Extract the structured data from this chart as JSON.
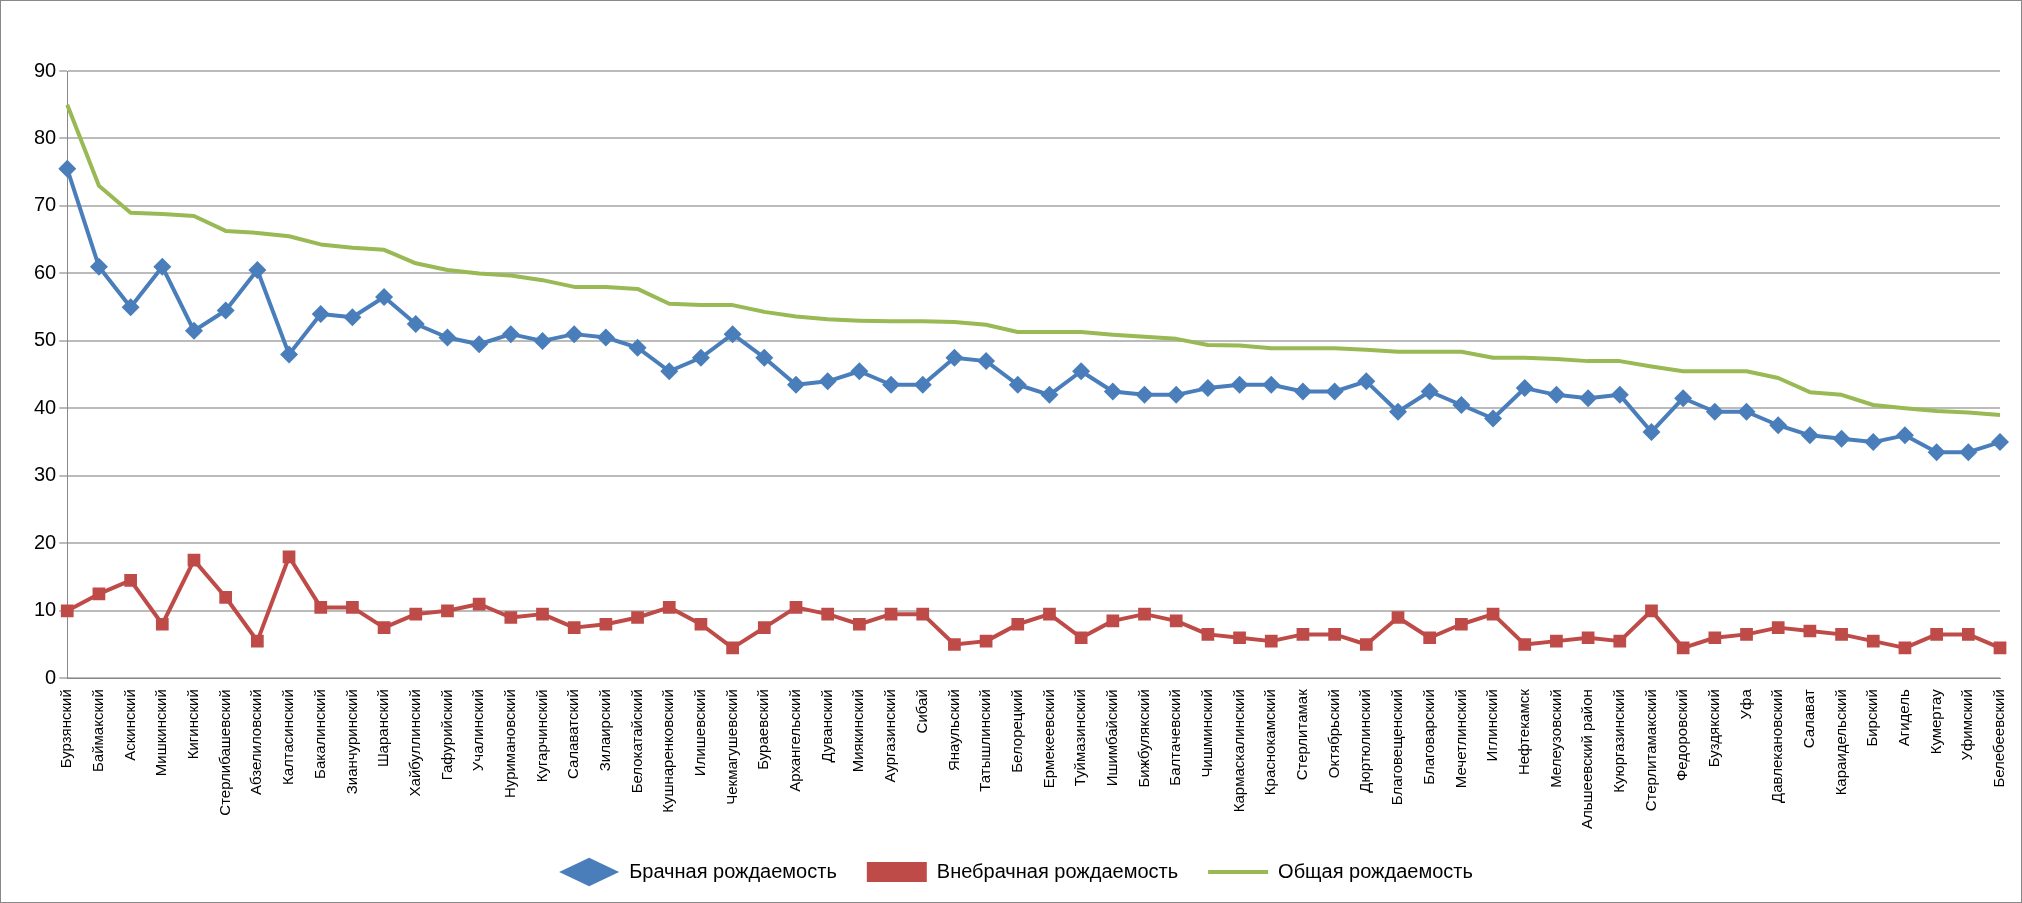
{
  "chart_data": {
    "type": "line",
    "categories": [
      "Бурзянский",
      "Баймакский",
      "Аскинский",
      "Мишкинский",
      "Кигинский",
      "Стерлибашевский",
      "Абзелиловский",
      "Калтасинский",
      "Бакалинский",
      "Зианчуринский",
      "Шаранский",
      "Хайбуллинский",
      "Гафурийский",
      "Учалинский",
      "Нуримановский",
      "Кугарчинский",
      "Салаватский",
      "Зилаирский",
      "Белокатайский",
      "Кушнаренковский",
      "Илишевский",
      "Чекмагушевский",
      "Бураевский",
      "Архангельский",
      "Дуванский",
      "Миякинский",
      "Аургазинский",
      "Сибай",
      "Янаульский",
      "Татышлинский",
      "Белорецкий",
      "Ермекеевский",
      "Туймазинский",
      "Ишимбайский",
      "Бижбулякский",
      "Балтачевский",
      "Чишминский",
      "Кармаскалинский",
      "Краснокамский",
      "Стерлитамак",
      "Октябрьский",
      "Дюртюлинский",
      "Благовещенский",
      "Благоварский",
      "Мечетлинский",
      "Иглинский",
      "Нефтекамск",
      "Мелеузовский",
      "Альшеевский район",
      "Куюргазинский",
      "Стерлитамакский",
      "Федоровский",
      "Буздякский",
      "Уфа",
      "Давлекановский",
      "Салават",
      "Караидельский",
      "Бирский",
      "Агидель",
      "Кумертау",
      "Уфимский",
      "Белебеевский"
    ],
    "series": [
      {
        "name": "Брачная рождаемость",
        "color": "#4a7ebb",
        "marker": "diamond",
        "values": [
          75.5,
          61,
          55,
          61,
          51.5,
          54.5,
          60.5,
          48,
          54,
          53.5,
          56.5,
          52.5,
          50.5,
          49.5,
          51,
          50,
          51,
          50.5,
          49,
          45.5,
          47.5,
          51,
          47.5,
          43.5,
          44,
          45.5,
          43.5,
          43.5,
          47.5,
          47,
          43.5,
          42,
          45.5,
          42.5,
          42,
          42,
          43,
          43.5,
          43.5,
          42.5,
          42.5,
          44,
          39.5,
          42.5,
          40.5,
          38.5,
          43,
          42,
          41.5,
          42,
          36.5,
          41.5,
          39.5,
          39.5,
          37.5,
          36,
          35.5,
          35,
          36,
          33.5,
          33.5,
          35
        ]
      },
      {
        "name": "Внебрачная рождаемость",
        "color": "#be4b48",
        "marker": "square",
        "values": [
          10,
          12.5,
          14.5,
          8,
          17.5,
          12,
          5.5,
          18,
          10.5,
          10.5,
          7.5,
          9.5,
          10,
          11,
          9,
          9.5,
          7.5,
          8,
          9,
          10.5,
          8,
          4.5,
          7.5,
          10.5,
          9.5,
          8,
          9.5,
          9.5,
          5,
          5.5,
          8,
          9.5,
          6,
          8.5,
          9.5,
          8.5,
          6.5,
          6,
          5.5,
          6.5,
          6.5,
          5,
          9,
          6,
          8,
          9.5,
          5,
          5.5,
          6,
          5.5,
          10,
          4.5,
          6,
          6.5,
          7.5,
          7,
          6.5,
          5.5,
          4.5,
          6.5,
          6.5,
          4.5
        ]
      },
      {
        "name": "Общая рождаемость",
        "color": "#98b954",
        "marker": "none",
        "values": [
          85,
          73,
          69,
          68.8,
          68.5,
          66.3,
          66,
          65.5,
          64.3,
          63.8,
          63.5,
          61.5,
          60.5,
          60,
          59.7,
          59,
          58,
          58,
          57.7,
          55.5,
          55.3,
          55.3,
          54.3,
          53.6,
          53.2,
          53,
          52.9,
          52.9,
          52.8,
          52.4,
          51.3,
          51.3,
          51.3,
          50.9,
          50.6,
          50.3,
          49.4,
          49.3,
          48.9,
          48.9,
          48.9,
          48.7,
          48.4,
          48.4,
          48.4,
          47.5,
          47.5,
          47.3,
          47,
          47,
          46.2,
          45.5,
          45.5,
          45.5,
          44.5,
          42.4,
          42,
          40.5,
          40,
          39.6,
          39.4,
          39
        ]
      }
    ],
    "ylim": [
      0,
      90
    ],
    "yticks": [
      0,
      10,
      20,
      30,
      40,
      50,
      60,
      70,
      80,
      90
    ],
    "grid": "y",
    "legend": "bottom"
  }
}
